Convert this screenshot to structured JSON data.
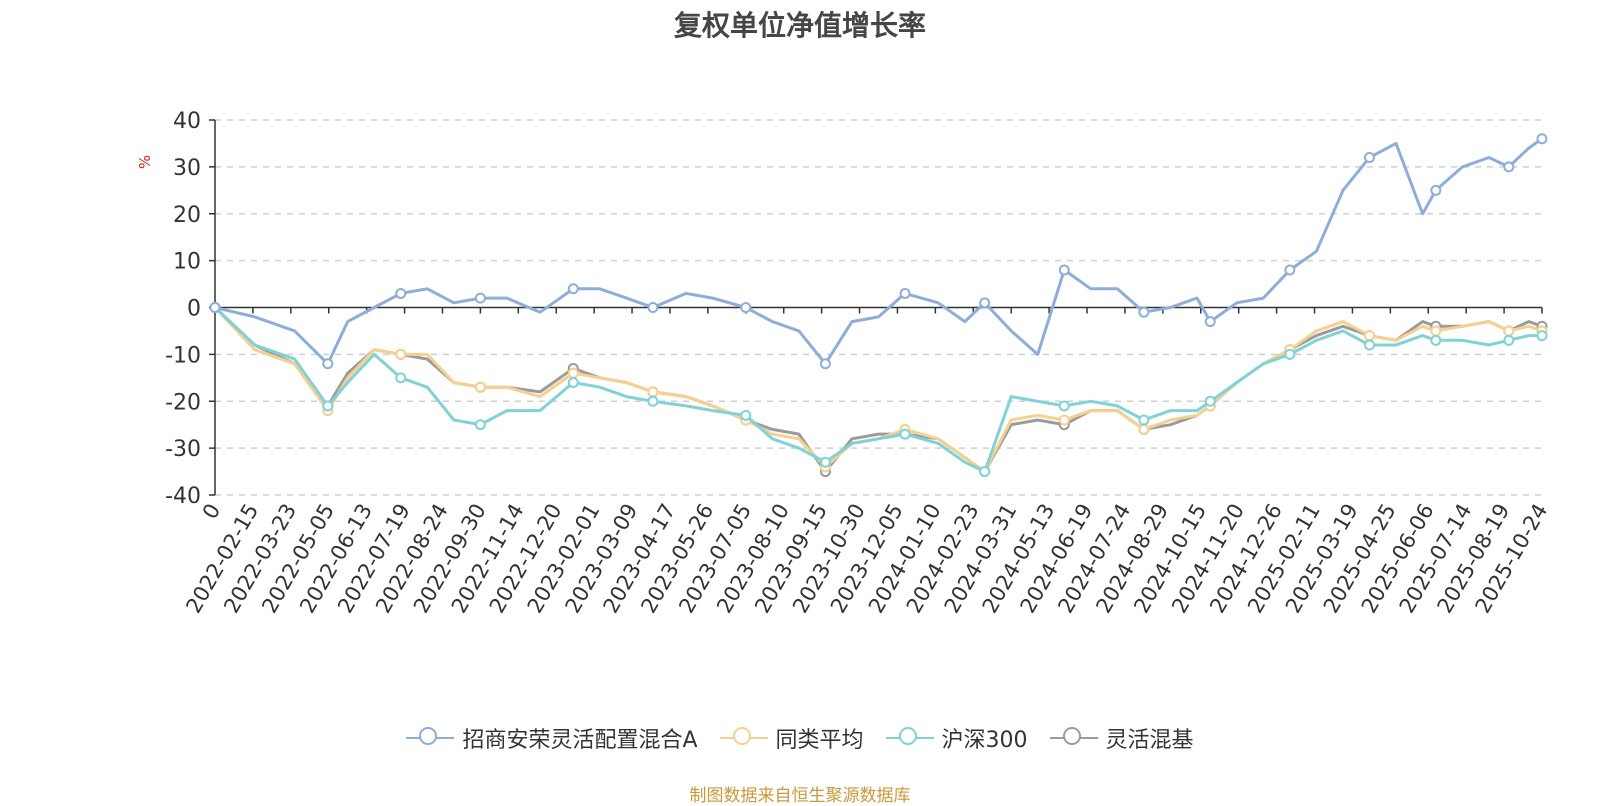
{
  "chart_data": {
    "type": "line",
    "title": "复权单位净值增长率",
    "ylabel": "%",
    "xlabel": "",
    "ylim": [
      -40,
      40
    ],
    "y_ticks": [
      40,
      30,
      20,
      10,
      0,
      -10,
      -20,
      -30,
      -40
    ],
    "x_tick_labels": [
      "0",
      "2022-02-15",
      "2022-03-23",
      "2022-05-05",
      "2022-06-13",
      "2022-07-19",
      "2022-08-24",
      "2022-09-30",
      "2022-11-14",
      "2022-12-20",
      "2023-02-01",
      "2023-03-09",
      "2023-04-17",
      "2023-05-26",
      "2023-07-05",
      "2023-08-10",
      "2023-09-15",
      "2023-10-30",
      "2023-12-05",
      "2024-01-10",
      "2024-02-23",
      "2024-03-31",
      "2024-05-13",
      "2024-06-19",
      "2024-07-24",
      "2024-08-29",
      "2024-10-15",
      "2024-11-20",
      "2024-12-26",
      "2025-02-11",
      "2025-03-19",
      "2025-04-25",
      "2025-06-06",
      "2025-07-14",
      "2025-08-19",
      "2025-10-24"
    ],
    "x": [
      0,
      0.03,
      0.06,
      0.085,
      0.1,
      0.12,
      0.14,
      0.16,
      0.18,
      0.2,
      0.22,
      0.245,
      0.27,
      0.29,
      0.31,
      0.33,
      0.355,
      0.375,
      0.4,
      0.42,
      0.44,
      0.46,
      0.48,
      0.5,
      0.52,
      0.545,
      0.565,
      0.58,
      0.6,
      0.62,
      0.64,
      0.66,
      0.68,
      0.7,
      0.72,
      0.74,
      0.75,
      0.77,
      0.79,
      0.81,
      0.83,
      0.85,
      0.87,
      0.89,
      0.91,
      0.92,
      0.94,
      0.96,
      0.975,
      0.99,
      1.0
    ],
    "series": [
      {
        "name": "招商安荣灵活配置混合A",
        "color": "#8fadd9",
        "values": [
          0,
          -2,
          -5,
          -12,
          -3,
          0,
          3,
          4,
          1,
          2,
          2,
          -1,
          4,
          4,
          2,
          0,
          3,
          2,
          0,
          -3,
          -5,
          -12,
          -3,
          -2,
          3,
          1,
          -3,
          1,
          -5,
          -10,
          8,
          4,
          4,
          -1,
          0,
          2,
          -3,
          1,
          2,
          8,
          12,
          25,
          32,
          35,
          20,
          25,
          30,
          32,
          30,
          34,
          36
        ]
      },
      {
        "name": "同类平均",
        "color": "#f5d08f",
        "values": [
          0,
          -9,
          -12,
          -22,
          -15,
          -9,
          -10,
          -10,
          -16,
          -17,
          -17,
          -19,
          -14,
          -15,
          -16,
          -18,
          -19,
          -21,
          -24,
          -27,
          -28,
          -34,
          -29,
          -28,
          -26,
          -28,
          -32,
          -35,
          -24,
          -23,
          -24,
          -22,
          -22,
          -26,
          -24,
          -23,
          -21,
          -16,
          -12,
          -9,
          -5,
          -3,
          -6,
          -7,
          -4,
          -5,
          -4,
          -3,
          -5,
          -4,
          -5
        ]
      },
      {
        "name": "沪深300",
        "color": "#7fd3d7",
        "values": [
          0,
          -8,
          -11,
          -21,
          -16,
          -10,
          -15,
          -17,
          -24,
          -25,
          -22,
          -22,
          -16,
          -17,
          -19,
          -20,
          -21,
          -22,
          -23,
          -28,
          -30,
          -33,
          -29,
          -28,
          -27,
          -29,
          -33,
          -35,
          -19,
          -20,
          -21,
          -20,
          -21,
          -24,
          -22,
          -22,
          -20,
          -16,
          -12,
          -10,
          -7,
          -5,
          -8,
          -8,
          -6,
          -7,
          -7,
          -8,
          -7,
          -6,
          -6
        ]
      },
      {
        "name": "灵活混基",
        "color": "#9b9b9b",
        "values": [
          0,
          -8,
          -12,
          -21,
          -14,
          -9,
          -10,
          -11,
          -16,
          -17,
          -17,
          -18,
          -13,
          -15,
          -16,
          -18,
          -19,
          -21,
          -24,
          -26,
          -27,
          -35,
          -28,
          -27,
          -27,
          -28,
          -32,
          -35,
          -25,
          -24,
          -25,
          -22,
          -22,
          -26,
          -25,
          -23,
          -21,
          -16,
          -12,
          -9,
          -6,
          -4,
          -6,
          -7,
          -3,
          -4,
          -4,
          -3,
          -5,
          -3,
          -4
        ]
      }
    ]
  },
  "source_text": "制图数据来自恒生聚源数据库"
}
